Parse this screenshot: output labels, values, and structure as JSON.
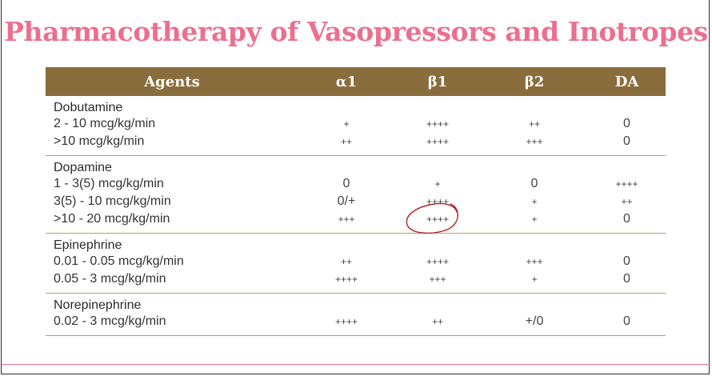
{
  "slide": {
    "title": "Pharmacotherapy of Vasopressors and Inotropes"
  },
  "table": {
    "headers": [
      "Agents",
      "α1",
      "β1",
      "β2",
      "DA"
    ],
    "groups": [
      {
        "drug": "Dobutamine",
        "rows": [
          {
            "dose": "2 - 10 mcg/kg/min",
            "a1": "+",
            "b1": "++++",
            "b2": "++",
            "da": "0"
          },
          {
            "dose": ">10 mcg/kg/min",
            "a1": "++",
            "b1": "++++",
            "b2": "+++",
            "da": "0"
          }
        ]
      },
      {
        "drug": "Dopamine",
        "rows": [
          {
            "dose": "1 - 3(5) mcg/kg/min",
            "a1": "0",
            "b1": "+",
            "b2": "0",
            "da": "++++"
          },
          {
            "dose": "3(5) - 10 mcg/kg/min",
            "a1": "0/+",
            "b1": "++++",
            "b2": "+",
            "da": "++"
          },
          {
            "dose": ">10 - 20 mcg/kg/min",
            "a1": "+++",
            "b1": "++++",
            "b2": "+",
            "da": "0"
          }
        ]
      },
      {
        "drug": "Epinephrine",
        "rows": [
          {
            "dose": "0.01 - 0.05 mcg/kg/min",
            "a1": "++",
            "b1": "++++",
            "b2": "+++",
            "da": "0"
          },
          {
            "dose": "0.05 - 3 mcg/kg/min",
            "a1": "++++",
            "b1": "+++",
            "b2": "+",
            "da": "0"
          }
        ]
      },
      {
        "drug": "Norepinephrine",
        "rows": [
          {
            "dose": "0.02 - 3 mcg/kg/min",
            "a1": "++++",
            "b1": "++",
            "b2": "+/0",
            "da": "0"
          }
        ]
      }
    ]
  },
  "colors": {
    "title": "#ec6f8f",
    "header_bg": "#8a6d3c",
    "annotation": "#b0202a"
  }
}
